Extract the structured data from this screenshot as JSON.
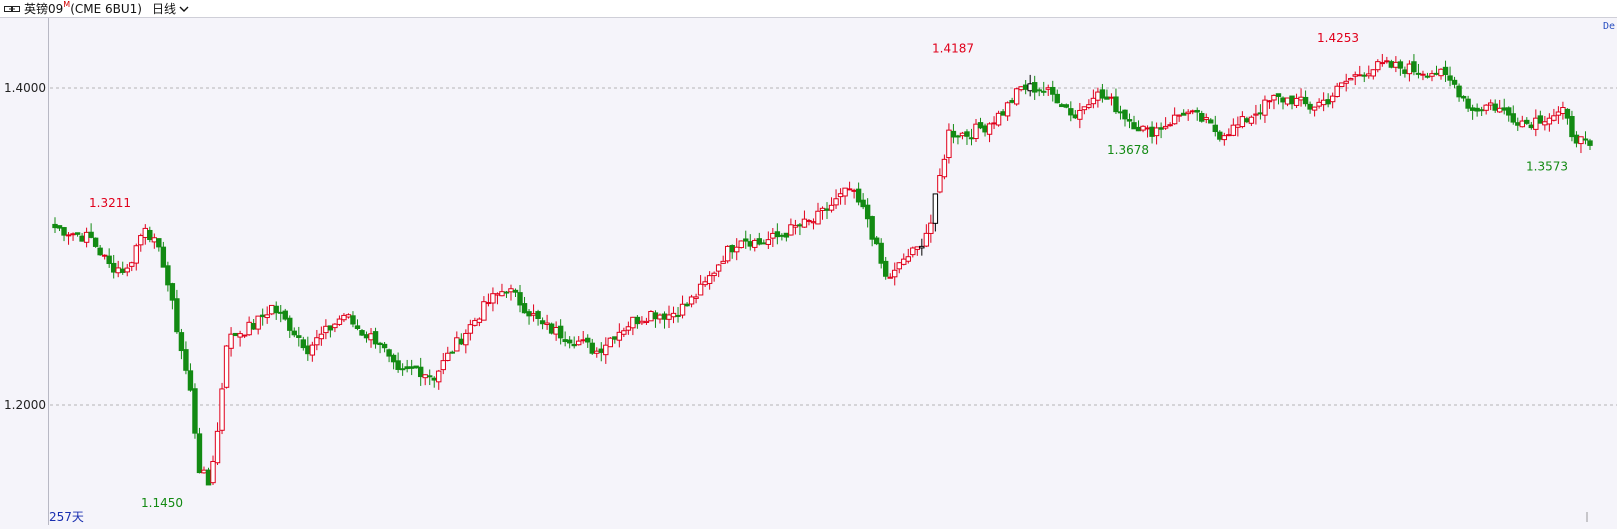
{
  "header": {
    "symbol": "英镑09",
    "superscript": "M",
    "contract": "(CME 6BU1)",
    "period": "日线"
  },
  "corner_label": "De",
  "days_label": "257天",
  "colors": {
    "up": "#e0001b",
    "down": "#138a13",
    "flat": "#000000",
    "grid": "#b5b5b5",
    "background": "#f5f4fa"
  },
  "chart_data": {
    "type": "candlestick",
    "y_ticks": [
      "1.2000",
      "1.4000"
    ],
    "ylim": [
      1.134,
      1.435
    ],
    "annotations": [
      {
        "label": "1.3211",
        "value": 1.3211,
        "kind": "high"
      },
      {
        "label": "1.1450",
        "value": 1.145,
        "kind": "low"
      },
      {
        "label": "1.4187",
        "value": 1.4187,
        "kind": "high"
      },
      {
        "label": "1.3678",
        "value": 1.3678,
        "kind": "low"
      },
      {
        "label": "1.4253",
        "value": 1.4253,
        "kind": "high"
      },
      {
        "label": "1.3573",
        "value": 1.3573,
        "kind": "low"
      }
    ],
    "waypoints": [
      [
        0,
        1.312
      ],
      [
        8,
        1.305
      ],
      [
        12,
        1.288
      ],
      [
        16,
        1.285
      ],
      [
        18,
        1.3
      ],
      [
        20,
        1.314
      ],
      [
        24,
        1.29
      ],
      [
        28,
        1.235
      ],
      [
        30,
        1.208
      ],
      [
        32,
        1.16
      ],
      [
        34,
        1.15
      ],
      [
        36,
        1.183
      ],
      [
        38,
        1.24
      ],
      [
        40,
        1.245
      ],
      [
        44,
        1.25
      ],
      [
        48,
        1.262
      ],
      [
        52,
        1.25
      ],
      [
        56,
        1.236
      ],
      [
        60,
        1.246
      ],
      [
        64,
        1.257
      ],
      [
        68,
        1.246
      ],
      [
        72,
        1.24
      ],
      [
        74,
        1.228
      ],
      [
        76,
        1.219
      ],
      [
        80,
        1.223
      ],
      [
        84,
        1.218
      ],
      [
        88,
        1.235
      ],
      [
        92,
        1.25
      ],
      [
        96,
        1.265
      ],
      [
        100,
        1.274
      ],
      [
        104,
        1.262
      ],
      [
        108,
        1.25
      ],
      [
        112,
        1.245
      ],
      [
        116,
        1.24
      ],
      [
        120,
        1.234
      ],
      [
        124,
        1.245
      ],
      [
        128,
        1.253
      ],
      [
        132,
        1.258
      ],
      [
        136,
        1.257
      ],
      [
        140,
        1.263
      ],
      [
        144,
        1.276
      ],
      [
        148,
        1.294
      ],
      [
        152,
        1.306
      ],
      [
        156,
        1.302
      ],
      [
        160,
        1.306
      ],
      [
        164,
        1.312
      ],
      [
        168,
        1.316
      ],
      [
        172,
        1.326
      ],
      [
        176,
        1.336
      ],
      [
        180,
        1.318
      ],
      [
        182,
        1.298
      ],
      [
        184,
        1.28
      ],
      [
        186,
        1.283
      ],
      [
        188,
        1.292
      ],
      [
        191,
        1.298
      ],
      [
        194,
        1.315
      ],
      [
        198,
        1.372
      ],
      [
        202,
        1.371
      ],
      [
        206,
        1.376
      ],
      [
        210,
        1.385
      ],
      [
        214,
        1.4
      ],
      [
        218,
        1.4
      ],
      [
        222,
        1.394
      ],
      [
        226,
        1.382
      ],
      [
        230,
        1.397
      ],
      [
        234,
        1.391
      ],
      [
        238,
        1.38
      ],
      [
        242,
        1.372
      ],
      [
        246,
        1.377
      ],
      [
        250,
        1.385
      ],
      [
        254,
        1.38
      ],
      [
        258,
        1.371
      ],
      [
        262,
        1.376
      ],
      [
        266,
        1.385
      ],
      [
        270,
        1.393
      ],
      [
        274,
        1.393
      ],
      [
        278,
        1.388
      ],
      [
        282,
        1.393
      ],
      [
        286,
        1.404
      ],
      [
        290,
        1.411
      ],
      [
        294,
        1.414
      ],
      [
        298,
        1.413
      ],
      [
        302,
        1.411
      ],
      [
        306,
        1.41
      ],
      [
        310,
        1.402
      ],
      [
        314,
        1.386
      ],
      [
        318,
        1.39
      ],
      [
        322,
        1.383
      ],
      [
        326,
        1.378
      ],
      [
        330,
        1.382
      ],
      [
        334,
        1.384
      ],
      [
        336,
        1.372
      ],
      [
        340,
        1.361
      ]
    ]
  }
}
